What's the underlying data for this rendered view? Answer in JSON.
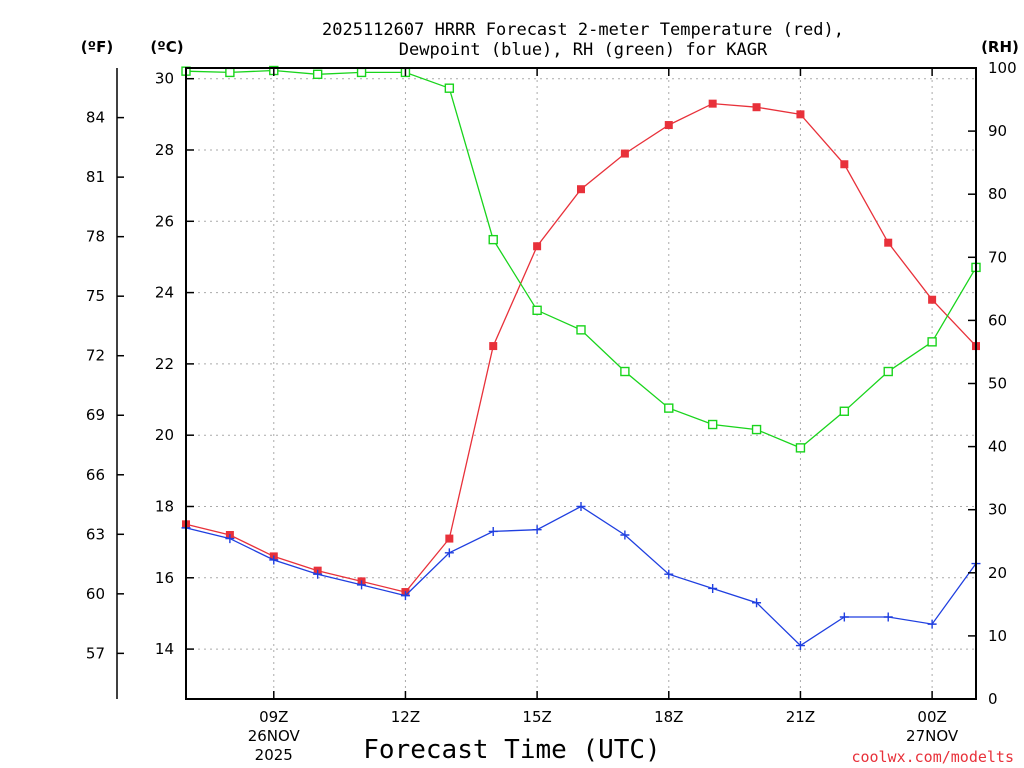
{
  "chart_data": {
    "type": "line",
    "title_line1": "2025112607 HRRR Forecast 2-meter Temperature (red),",
    "title_line2": "Dewpoint (blue), RH (green) for KAGR",
    "xlabel": "Forecast Time (UTC)",
    "credit": "coolwx.com/modelts",
    "unit_f": "(ºF)",
    "unit_c": "(ºC)",
    "unit_rh": "(RH)",
    "x_hours": [
      7,
      8,
      9,
      10,
      11,
      12,
      13,
      14,
      15,
      16,
      17,
      18,
      19,
      20,
      21,
      22,
      23,
      24,
      25
    ],
    "xlim": [
      7,
      25
    ],
    "ylim_c": [
      12.6,
      30.3
    ],
    "ylim_f": [
      54.7,
      86.5
    ],
    "ylim_rh": [
      0,
      100
    ],
    "x_ticks": [
      {
        "hour": 9,
        "label": "09Z",
        "label2": "26NOV",
        "label3": "2025"
      },
      {
        "hour": 12,
        "label": "12Z",
        "label2": "",
        "label3": ""
      },
      {
        "hour": 15,
        "label": "15Z",
        "label2": "",
        "label3": ""
      },
      {
        "hour": 18,
        "label": "18Z",
        "label2": "",
        "label3": ""
      },
      {
        "hour": 21,
        "label": "21Z",
        "label2": "",
        "label3": ""
      },
      {
        "hour": 24,
        "label": "00Z",
        "label2": "27NOV",
        "label3": ""
      }
    ],
    "c_ticks": [
      14,
      16,
      18,
      20,
      22,
      24,
      26,
      28,
      30
    ],
    "f_ticks": [
      57,
      60,
      63,
      66,
      69,
      72,
      75,
      78,
      81,
      84
    ],
    "rh_ticks": [
      0,
      10,
      20,
      30,
      40,
      50,
      60,
      70,
      80,
      90,
      100
    ],
    "series": [
      {
        "name": "Temperature",
        "color": "#e8313a",
        "axis": "c",
        "marker": "filled-square",
        "values": [
          17.5,
          17.2,
          16.6,
          16.2,
          15.9,
          15.6,
          17.1,
          22.5,
          25.3,
          26.9,
          27.9,
          28.7,
          29.3,
          29.2,
          29.0,
          27.6,
          25.4,
          23.8,
          22.5
        ]
      },
      {
        "name": "Dewpoint",
        "color": "#1f3fe0",
        "axis": "c",
        "marker": "plus",
        "values": [
          17.4,
          17.1,
          16.5,
          16.1,
          15.8,
          15.5,
          16.7,
          17.3,
          17.35,
          18.0,
          17.2,
          16.1,
          15.7,
          15.3,
          14.1,
          14.9,
          14.9,
          14.7,
          16.4
        ]
      },
      {
        "name": "RH",
        "color": "#19d41c",
        "axis": "rh",
        "marker": "open-square",
        "values": [
          99.5,
          99.3,
          99.6,
          99.0,
          99.3,
          99.3,
          96.8,
          72.8,
          61.6,
          58.5,
          51.9,
          46.1,
          43.5,
          42.7,
          39.8,
          45.6,
          51.9,
          56.6,
          68.4
        ]
      }
    ]
  }
}
